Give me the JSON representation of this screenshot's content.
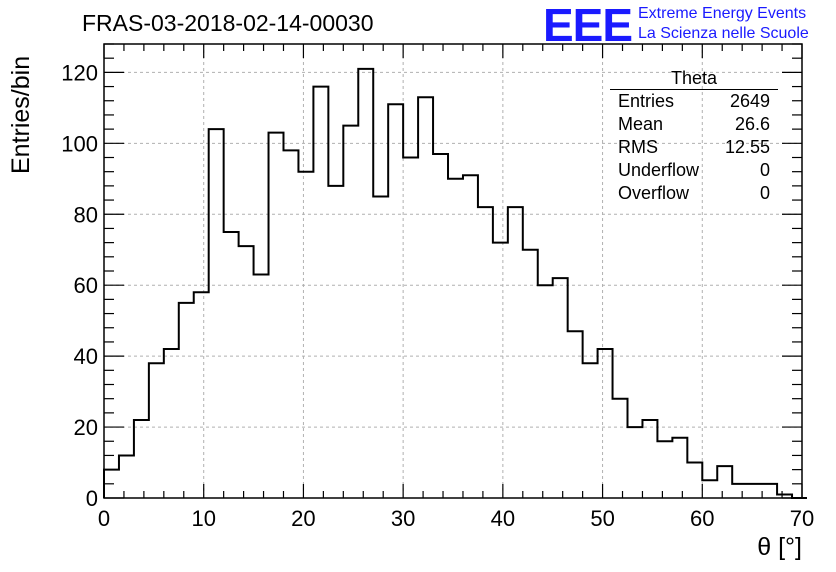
{
  "title": "FRAS-03-2018-02-14-00030",
  "logo": {
    "mark": "EEE",
    "line1": "Extreme Energy Events",
    "line2": "La Scienza nelle Scuole",
    "color": "#1a1aff"
  },
  "stats_box": {
    "title": "Theta",
    "rows": [
      {
        "label": "Entries",
        "value": "2649"
      },
      {
        "label": "Mean",
        "value": "26.6"
      },
      {
        "label": "RMS",
        "value": "12.55"
      },
      {
        "label": "Underflow",
        "value": "0"
      },
      {
        "label": "Overflow",
        "value": "0"
      }
    ]
  },
  "chart_data": {
    "type": "bar",
    "histogram": true,
    "ylabel": "Entries/bin",
    "xlabel": "θ [°]",
    "xlim": [
      0,
      70
    ],
    "ylim": [
      0,
      128
    ],
    "xticks": [
      0,
      10,
      20,
      30,
      40,
      50,
      60,
      70
    ],
    "yticks": [
      0,
      20,
      40,
      60,
      80,
      100,
      120
    ],
    "grid": true,
    "bin_width": 1.5,
    "bin_start": 0,
    "values": [
      8,
      12,
      22,
      38,
      42,
      55,
      58,
      104,
      75,
      71,
      63,
      103,
      98,
      92,
      116,
      88,
      105,
      121,
      85,
      111,
      96,
      113,
      97,
      90,
      91,
      82,
      72,
      82,
      70,
      60,
      62,
      47,
      38,
      42,
      28,
      20,
      22,
      16,
      17,
      10,
      5,
      9,
      4,
      4,
      4,
      1,
      0
    ]
  }
}
